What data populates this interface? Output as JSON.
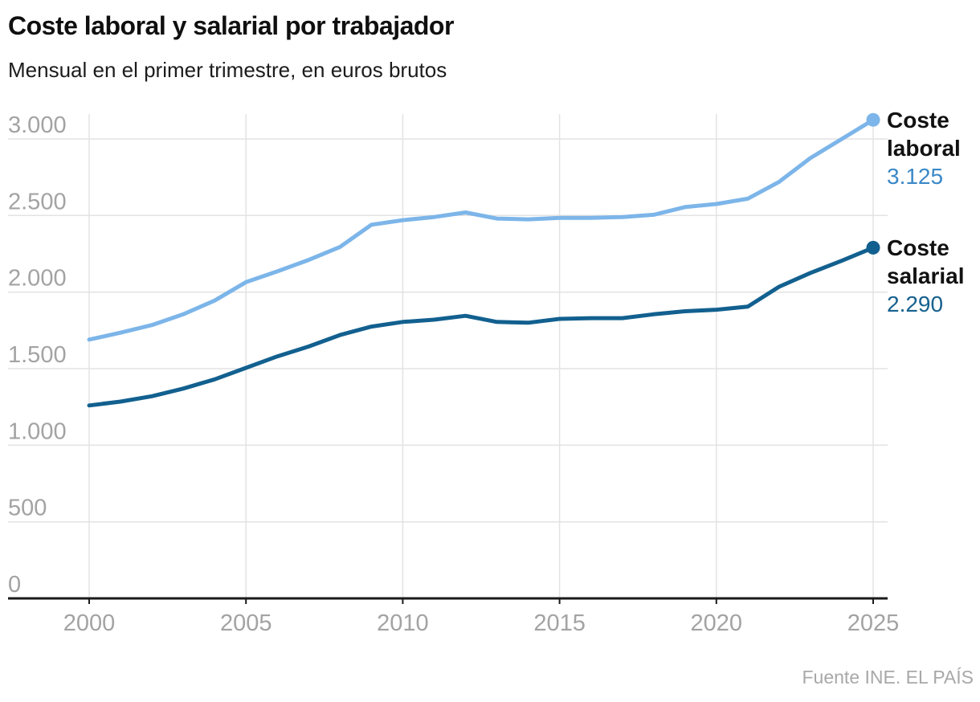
{
  "header": {
    "title": "Coste laboral y salarial por trabajador",
    "subtitle": "Mensual en el primer trimestre, en euros brutos"
  },
  "source": "Fuente INE. EL PAÍS",
  "colors": {
    "grid": "#e3e3e3",
    "axis": "#1a1a1a",
    "tick_text": "#a3a3a3",
    "laboral_line": "#7cb5e9",
    "salarial_line": "#12608f",
    "laboral_value_text": "#3a88c7",
    "salarial_value_text": "#16618f"
  },
  "chart_data": {
    "type": "line",
    "title": "Coste laboral y salarial por trabajador",
    "subtitle": "Mensual en el primer trimestre, en euros brutos",
    "x": [
      2000,
      2001,
      2002,
      2003,
      2004,
      2005,
      2006,
      2007,
      2008,
      2009,
      2010,
      2011,
      2012,
      2013,
      2014,
      2015,
      2016,
      2017,
      2018,
      2019,
      2020,
      2021,
      2022,
      2023,
      2024,
      2025
    ],
    "series": [
      {
        "name": "Coste laboral",
        "color": "#7cb5e9",
        "end_label": "3.125",
        "end_label_color": "#3a88c7",
        "values": [
          1690,
          1735,
          1785,
          1855,
          1945,
          2065,
          2135,
          2210,
          2295,
          2440,
          2470,
          2490,
          2520,
          2480,
          2475,
          2485,
          2485,
          2490,
          2505,
          2555,
          2575,
          2610,
          2720,
          2875,
          3000,
          3125
        ]
      },
      {
        "name": "Coste salarial",
        "color": "#12608f",
        "end_label": "2.290",
        "end_label_color": "#16618f",
        "values": [
          1260,
          1285,
          1320,
          1370,
          1430,
          1505,
          1580,
          1645,
          1720,
          1775,
          1805,
          1820,
          1845,
          1805,
          1800,
          1825,
          1830,
          1830,
          1855,
          1875,
          1885,
          1905,
          2035,
          2125,
          2205,
          2290
        ]
      }
    ],
    "y_axis": {
      "min": 0,
      "max": 3000,
      "tick_interval": 500,
      "tick_values": [
        0,
        500,
        1000,
        1500,
        2000,
        2500,
        3000
      ],
      "tick_labels": [
        "0",
        "500",
        "1.000",
        "1.500",
        "2.000",
        "2.500",
        "3.000"
      ]
    },
    "x_axis": {
      "tick_values": [
        2000,
        2005,
        2010,
        2015,
        2020,
        2025
      ],
      "tick_labels": [
        "2000",
        "2005",
        "2010",
        "2015",
        "2020",
        "2025"
      ]
    },
    "grid": true,
    "legend_position": "right"
  }
}
